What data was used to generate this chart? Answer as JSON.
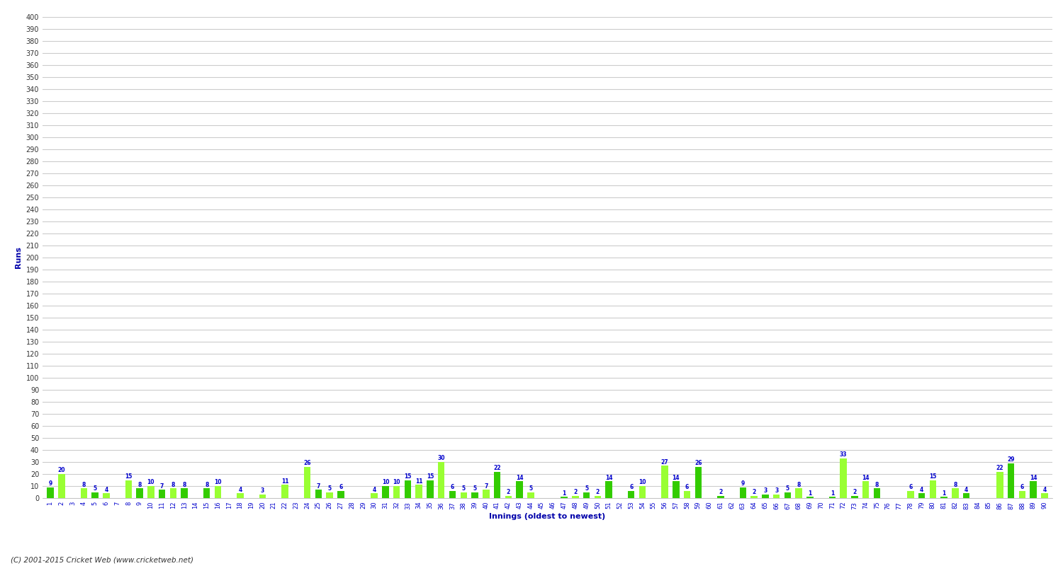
{
  "xlabel": "Innings (oldest to newest)",
  "ylabel": "Runs",
  "ylim": [
    0,
    400
  ],
  "ytick_step": 10,
  "background_color": "#ffffff",
  "plot_bg_color": "#ffffff",
  "grid_color": "#cccccc",
  "bar_color_dark": "#33cc00",
  "bar_color_light": "#99ff33",
  "copyright": "(C) 2001-2015 Cricket Web (www.cricketweb.net)",
  "innings_labels": [
    "1",
    "2",
    "3",
    "4",
    "5",
    "6",
    "7",
    "8",
    "9",
    "10",
    "11",
    "12",
    "13",
    "14",
    "15",
    "16",
    "17",
    "18",
    "19",
    "20",
    "21",
    "22",
    "23",
    "24",
    "25",
    "26",
    "27",
    "28",
    "29",
    "30",
    "31",
    "32",
    "33",
    "34",
    "35",
    "36",
    "37",
    "38",
    "39",
    "40",
    "41",
    "42",
    "43",
    "44",
    "45",
    "46",
    "47",
    "48",
    "49",
    "50",
    "51",
    "52",
    "53",
    "54",
    "55",
    "56",
    "57",
    "58",
    "59",
    "60",
    "61",
    "62",
    "63",
    "64",
    "65",
    "66",
    "67",
    "68",
    "69",
    "70",
    "71",
    "72",
    "73",
    "74",
    "75",
    "76",
    "77",
    "78",
    "79",
    "80",
    "81",
    "82",
    "83",
    "84",
    "85",
    "86",
    "87",
    "88",
    "89",
    "90"
  ],
  "values": [
    9,
    20,
    0,
    8,
    5,
    4,
    0,
    15,
    8,
    10,
    7,
    8,
    8,
    0,
    8,
    10,
    0,
    4,
    0,
    3,
    0,
    11,
    0,
    26,
    7,
    5,
    6,
    0,
    0,
    4,
    10,
    10,
    15,
    11,
    15,
    30,
    6,
    5,
    5,
    7,
    22,
    2,
    14,
    5,
    0,
    0,
    1,
    2,
    5,
    2,
    14,
    0,
    6,
    10,
    0,
    27,
    14,
    6,
    26,
    0,
    2,
    0,
    9,
    2,
    3,
    3,
    5,
    8,
    1,
    0,
    1,
    33,
    2,
    14,
    8,
    0,
    0,
    6,
    4,
    15,
    1,
    8,
    4,
    0,
    0,
    22,
    29,
    6,
    14,
    4
  ]
}
